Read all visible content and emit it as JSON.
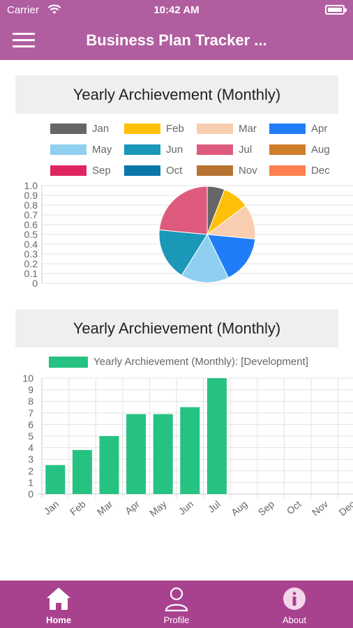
{
  "status_bar": {
    "carrier": "Carrier",
    "time": "10:42 AM"
  },
  "nav": {
    "title": "Business Plan Tracker ..."
  },
  "pie_card": {
    "title": "Yearly Archievement (Monthly)"
  },
  "bar_card": {
    "title": "Yearly Archievement (Monthly)"
  },
  "legend": {
    "months": [
      "Jan",
      "Feb",
      "Mar",
      "Apr",
      "May",
      "Jun",
      "Jul",
      "Aug",
      "Sep",
      "Oct",
      "Nov",
      "Dec"
    ],
    "colors": [
      "#666666",
      "#ffc107",
      "#f9cdb0",
      "#1f7ef7",
      "#8fcff0",
      "#1b97b8",
      "#de5b7e",
      "#ce7d2b",
      "#df2660",
      "#0b77a8",
      "#b87333",
      "#ff7f50"
    ]
  },
  "chart_data": [
    {
      "type": "pie",
      "categories": [
        "Jan",
        "Feb",
        "Mar",
        "Apr",
        "May",
        "Jun",
        "Jul",
        "Aug",
        "Sep",
        "Oct",
        "Nov",
        "Dec"
      ],
      "values": [
        2.5,
        3.8,
        5,
        6.9,
        6.9,
        7.5,
        10,
        0,
        0,
        0,
        0,
        0
      ],
      "colors": [
        "#666666",
        "#ffc107",
        "#f9cdb0",
        "#1f7ef7",
        "#8fcff0",
        "#1b97b8",
        "#de5b7e",
        "#ce7d2b",
        "#df2660",
        "#0b77a8",
        "#b87333",
        "#ff7f50"
      ],
      "yticks": [
        "0",
        "0.1",
        "0.2",
        "0.3",
        "0.4",
        "0.5",
        "0.6",
        "0.7",
        "0.8",
        "0.9",
        "1.0"
      ],
      "ylim": [
        0,
        1
      ],
      "grid": true,
      "legend_position": "top"
    },
    {
      "type": "bar",
      "series": [
        {
          "name": "Yearly Archievement (Monthly): [Development]",
          "color": "#26c281",
          "values": [
            2.5,
            3.8,
            5,
            6.9,
            6.9,
            7.5,
            10,
            null,
            null,
            null,
            null,
            null
          ]
        }
      ],
      "categories": [
        "Jan",
        "Feb",
        "Mar",
        "Apr",
        "May",
        "Jun",
        "Jul",
        "Aug",
        "Sep",
        "Oct",
        "Nov",
        "Dec"
      ],
      "yticks": [
        "0",
        "1",
        "2",
        "3",
        "4",
        "5",
        "6",
        "7",
        "8",
        "9",
        "10"
      ],
      "ylim": [
        0,
        10
      ],
      "grid": true,
      "legend_position": "top"
    }
  ],
  "tabs": [
    {
      "label": "Home",
      "icon": "home-icon",
      "active": true
    },
    {
      "label": "Profile",
      "icon": "profile-icon",
      "active": false
    },
    {
      "label": "About",
      "icon": "info-icon",
      "active": false
    }
  ]
}
